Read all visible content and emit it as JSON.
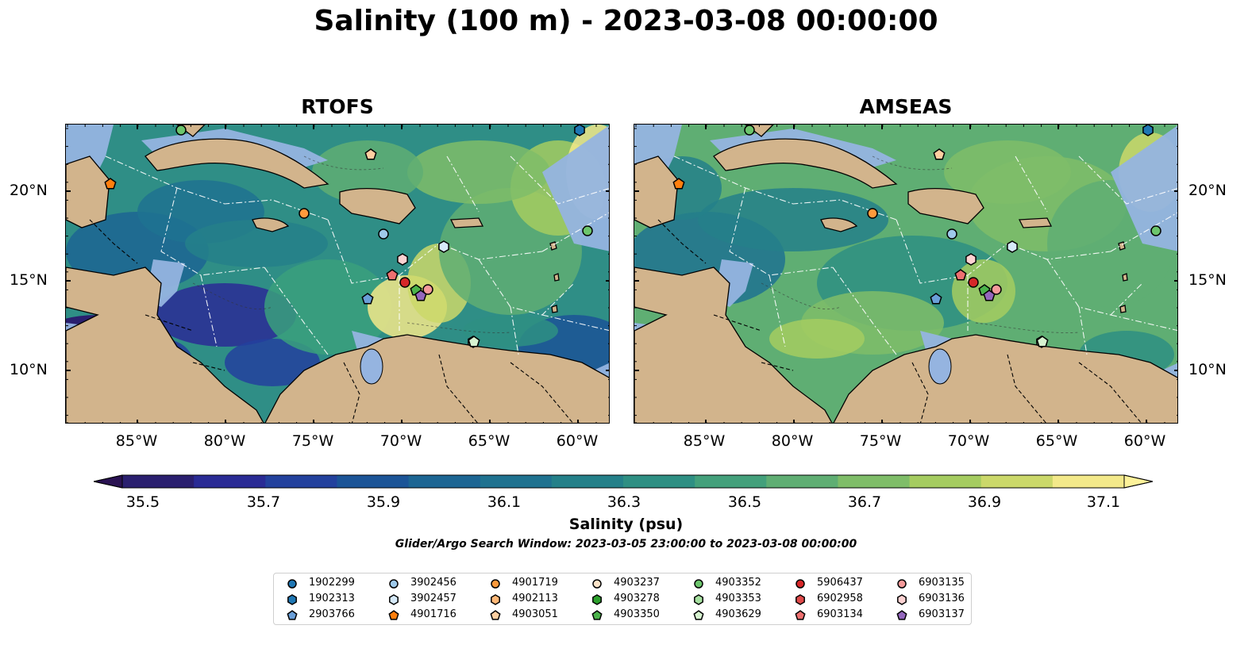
{
  "title": "Salinity (100 m) - 2023-03-08 00:00:00",
  "panels": [
    {
      "title": "RTOFS"
    },
    {
      "title": "AMSEAS"
    }
  ],
  "lat_labels": [
    "20°N",
    "15°N",
    "10°N"
  ],
  "lon_labels": [
    "85°W",
    "80°W",
    "75°W",
    "70°W",
    "65°W",
    "60°W"
  ],
  "colorbar": {
    "label": "Salinity (psu)",
    "ticks": [
      "35.5",
      "35.7",
      "35.9",
      "36.1",
      "36.3",
      "36.5",
      "36.7",
      "36.9",
      "37.1"
    ],
    "colors": [
      "#2a1f6f",
      "#2a2b95",
      "#23419d",
      "#1b5497",
      "#1c6593",
      "#1f7290",
      "#248089",
      "#2e8f83",
      "#43a07b",
      "#5fae73",
      "#7fbd68",
      "#a5cc60",
      "#cbd86a",
      "#f3e98a"
    ]
  },
  "subtitle": "Glider/Argo Search Window: 2023-03-05 23:00:00 to 2023-03-08 00:00:00",
  "map_colors": {
    "land": "#d2b48c",
    "shallow": "#95b4e0"
  },
  "legend": [
    {
      "label": "1902299",
      "shape": "circle",
      "color": "#1f77b4"
    },
    {
      "label": "1902313",
      "shape": "hexagon",
      "color": "#1f77b4"
    },
    {
      "label": "2903766",
      "shape": "pentagon",
      "color": "#6a9fd8"
    },
    {
      "label": "3902456",
      "shape": "circle",
      "color": "#9ec9ea"
    },
    {
      "label": "3902457",
      "shape": "hexagon",
      "color": "#d6eafa"
    },
    {
      "label": "4901716",
      "shape": "pentagon",
      "color": "#ff7f0e"
    },
    {
      "label": "4901719",
      "shape": "circle",
      "color": "#ff9a3c"
    },
    {
      "label": "4902113",
      "shape": "hexagon",
      "color": "#ffb877"
    },
    {
      "label": "4903051",
      "shape": "pentagon",
      "color": "#ffcfa1"
    },
    {
      "label": "4903237",
      "shape": "circle",
      "color": "#fde3c8"
    },
    {
      "label": "4903278",
      "shape": "hexagon",
      "color": "#2ca02c"
    },
    {
      "label": "4903350",
      "shape": "pentagon",
      "color": "#4bb34b"
    },
    {
      "label": "4903352",
      "shape": "circle",
      "color": "#6cc56c"
    },
    {
      "label": "4903353",
      "shape": "hexagon",
      "color": "#a6e0a0"
    },
    {
      "label": "4903629",
      "shape": "pentagon",
      "color": "#d7f3d0"
    },
    {
      "label": "5906437",
      "shape": "circle",
      "color": "#d62728"
    },
    {
      "label": "6902958",
      "shape": "hexagon",
      "color": "#e04a4a"
    },
    {
      "label": "6903134",
      "shape": "pentagon",
      "color": "#ee7070"
    },
    {
      "label": "6903135",
      "shape": "circle",
      "color": "#f59a9a"
    },
    {
      "label": "6903136",
      "shape": "hexagon",
      "color": "#fcd2d2"
    },
    {
      "label": "6903137",
      "shape": "pentagon",
      "color": "#9467bd"
    }
  ]
}
